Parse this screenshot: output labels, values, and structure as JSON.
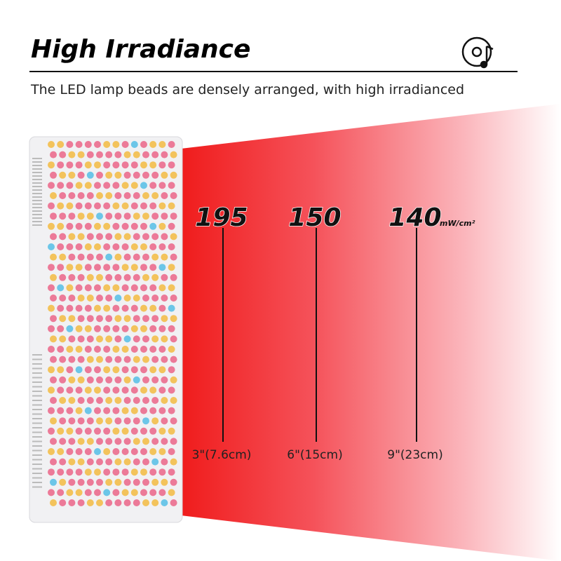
{
  "header": {
    "title": "High Irradiance",
    "subtitle": "The LED lamp beads are densely arranged, with high irradianced"
  },
  "measurements": [
    {
      "value": 195,
      "distance": "3\"(7.6cm)"
    },
    {
      "value": 150,
      "distance": "6\"(15cm)"
    },
    {
      "value": 140,
      "distance": "9\"(23cm)"
    }
  ],
  "unit": "mW/cm²"
}
